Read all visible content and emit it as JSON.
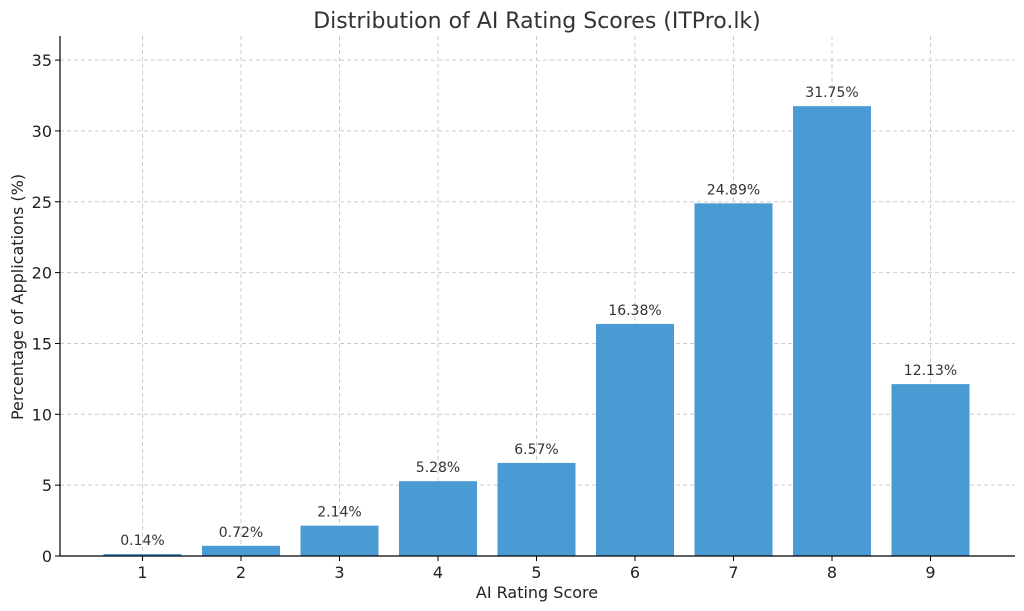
{
  "chart_data": {
    "type": "bar",
    "title": "Distribution of AI Rating Scores (ITPro.lk)",
    "xlabel": "AI Rating Score",
    "ylabel": "Percentage of Applications (%)",
    "categories": [
      "1",
      "2",
      "3",
      "4",
      "5",
      "6",
      "7",
      "8",
      "9"
    ],
    "values": [
      0.14,
      0.72,
      2.14,
      5.28,
      6.57,
      16.38,
      24.89,
      31.75,
      12.13
    ],
    "value_labels": [
      "0.14%",
      "0.72%",
      "2.14%",
      "5.28%",
      "6.57%",
      "16.38%",
      "24.89%",
      "31.75%",
      "12.13%"
    ],
    "ylim": [
      0,
      36.7
    ],
    "yticks": [
      0,
      5,
      10,
      15,
      20,
      25,
      30,
      35
    ],
    "grid": true,
    "bar_color": "#4a9ad4"
  }
}
